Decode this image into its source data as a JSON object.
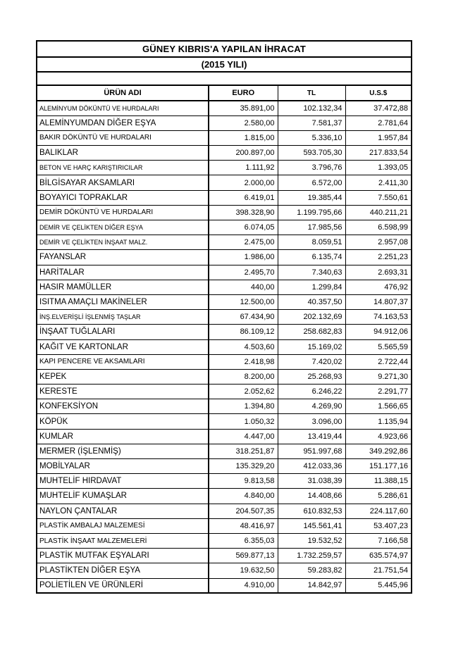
{
  "page": {
    "title_line1": "GÜNEY KIBRIS'A YAPILAN İHRACAT",
    "title_line2": "(2015 YILI)"
  },
  "table": {
    "columns": {
      "product": "ÜRÜN ADI",
      "euro": "EURO",
      "tl": "TL",
      "usd": "U.S.$"
    },
    "rows": [
      {
        "name": "ALEMİNYUM DÖKÜNTÜ VE HURDALARI",
        "euro": "35.891,00",
        "tl": "102.132,34",
        "usd": "37.472,88"
      },
      {
        "name": "ALEMİNYUMDAN DİĞER EŞYA",
        "euro": "2.580,00",
        "tl": "7.581,37",
        "usd": "2.781,64"
      },
      {
        "name": "BAKIR DÖKÜNTÜ VE HURDALARI",
        "euro": "1.815,00",
        "tl": "5.336,10",
        "usd": "1.957,84"
      },
      {
        "name": "BALIKLAR",
        "euro": "200.897,00",
        "tl": "593.705,30",
        "usd": "217.833,54"
      },
      {
        "name": "BETON VE HARÇ KARIŞTIRICILAR",
        "euro": "1.111,92",
        "tl": "3.796,76",
        "usd": "1.393,05"
      },
      {
        "name": "BİLGİSAYAR AKSAMLARI",
        "euro": "2.000,00",
        "tl": "6.572,00",
        "usd": "2.411,30"
      },
      {
        "name": "BOYAYICI TOPRAKLAR",
        "euro": "6.419,01",
        "tl": "19.385,44",
        "usd": "7.550,61"
      },
      {
        "name": "DEMİR DÖKÜNTÜ VE HURDALARI",
        "euro": "398.328,90",
        "tl": "1.199.795,66",
        "usd": "440.211,21"
      },
      {
        "name": "DEMİR VE ÇELİKTEN DİĞER EŞYA",
        "euro": "6.074,05",
        "tl": "17.985,56",
        "usd": "6.598,99"
      },
      {
        "name": "DEMİR VE ÇELİKTEN İNŞAAT MALZ.",
        "euro": "2.475,00",
        "tl": "8.059,51",
        "usd": "2.957,08"
      },
      {
        "name": "FAYANSLAR",
        "euro": "1.986,00",
        "tl": "6.135,74",
        "usd": "2.251,23"
      },
      {
        "name": "HARİTALAR",
        "euro": "2.495,70",
        "tl": "7.340,63",
        "usd": "2.693,31"
      },
      {
        "name": "HASIR MAMÜLLER",
        "euro": "440,00",
        "tl": "1.299,84",
        "usd": "476,92"
      },
      {
        "name": "ISITMA AMAÇLI MAKİNELER",
        "euro": "12.500,00",
        "tl": "40.357,50",
        "usd": "14.807,37"
      },
      {
        "name": "İNŞ.ELVERİŞLİ İŞLENMİŞ TAŞLAR",
        "euro": "67.434,90",
        "tl": "202.132,69",
        "usd": "74.163,53"
      },
      {
        "name": "İNŞAAT TUĞLALARI",
        "euro": "86.109,12",
        "tl": "258.682,83",
        "usd": "94.912,06"
      },
      {
        "name": "KAĞIT VE KARTONLAR",
        "euro": "4.503,60",
        "tl": "15.169,02",
        "usd": "5.565,59"
      },
      {
        "name": "KAPI PENCERE VE AKSAMLARI",
        "euro": "2.418,98",
        "tl": "7.420,02",
        "usd": "2.722,44"
      },
      {
        "name": "KEPEK",
        "euro": "8.200,00",
        "tl": "25.268,93",
        "usd": "9.271,30"
      },
      {
        "name": "KERESTE",
        "euro": "2.052,62",
        "tl": "6.246,22",
        "usd": "2.291,77"
      },
      {
        "name": "KONFEKSİYON",
        "euro": "1.394,80",
        "tl": "4.269,90",
        "usd": "1.566,65"
      },
      {
        "name": "KÖPÜK",
        "euro": "1.050,32",
        "tl": "3.096,00",
        "usd": "1.135,94"
      },
      {
        "name": "KUMLAR",
        "euro": "4.447,00",
        "tl": "13.419,44",
        "usd": "4.923,66"
      },
      {
        "name": "MERMER (İŞLENMİŞ)",
        "euro": "318.251,87",
        "tl": "951.997,68",
        "usd": "349.292,86"
      },
      {
        "name": "MOBİLYALAR",
        "euro": "135.329,20",
        "tl": "412.033,36",
        "usd": "151.177,16"
      },
      {
        "name": "MUHTELİF HIRDAVAT",
        "euro": "9.813,58",
        "tl": "31.038,39",
        "usd": "11.388,15"
      },
      {
        "name": "MUHTELİF KUMAŞLAR",
        "euro": "4.840,00",
        "tl": "14.408,66",
        "usd": "5.286,61"
      },
      {
        "name": "NAYLON ÇANTALAR",
        "euro": "204.507,35",
        "tl": "610.832,53",
        "usd": "224.117,60"
      },
      {
        "name": "PLASTİK AMBALAJ MALZEMESİ",
        "euro": "48.416,97",
        "tl": "145.561,41",
        "usd": "53.407,23"
      },
      {
        "name": "PLASTİK İNŞAAT MALZEMELERİ",
        "euro": "6.355,03",
        "tl": "19.532,52",
        "usd": "7.166,58"
      },
      {
        "name": "PLASTİK MUTFAK EŞYALARI",
        "euro": "569.877,13",
        "tl": "1.732.259,57",
        "usd": "635.574,97"
      },
      {
        "name": "PLASTİKTEN DİĞER EŞYA",
        "euro": "19.632,50",
        "tl": "59.283,82",
        "usd": "21.751,54"
      },
      {
        "name": "POLİETİLEN VE ÜRÜNLERİ",
        "euro": "4.910,00",
        "tl": "14.842,97",
        "usd": "5.445,96"
      }
    ]
  }
}
